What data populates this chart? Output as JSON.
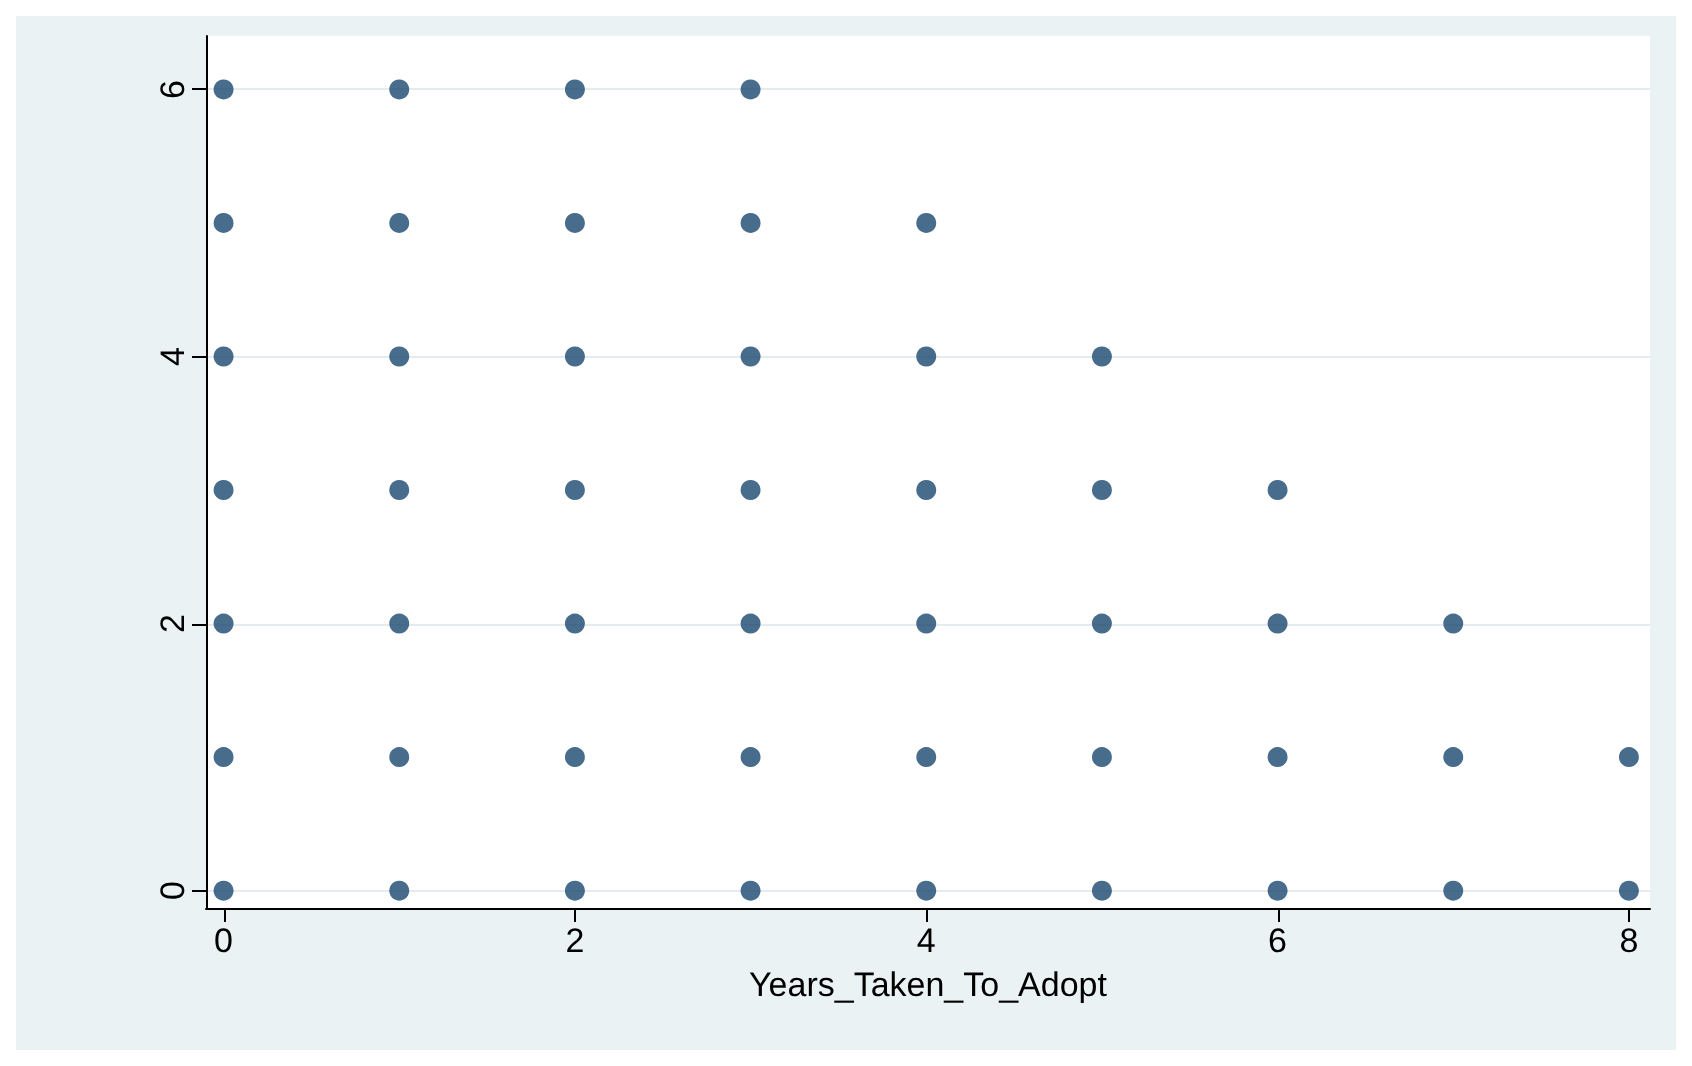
{
  "chart_data": {
    "type": "scatter",
    "xlabel": "Years_Taken_To_Adopt",
    "x": [
      0,
      0,
      0,
      0,
      0,
      0,
      0,
      1,
      1,
      1,
      1,
      1,
      1,
      1,
      2,
      2,
      2,
      2,
      2,
      2,
      2,
      3,
      3,
      3,
      3,
      3,
      3,
      3,
      4,
      4,
      4,
      4,
      4,
      4,
      5,
      5,
      5,
      5,
      5,
      6,
      6,
      6,
      6,
      7,
      7,
      7,
      8,
      8
    ],
    "series": [
      {
        "color": "#1a476f",
        "values": [
          0,
          1,
          2,
          3,
          4,
          5,
          6,
          0,
          1,
          2,
          3,
          4,
          5,
          6,
          0,
          1,
          2,
          3,
          4,
          5,
          6,
          0,
          1,
          2,
          3,
          4,
          5,
          6,
          0,
          1,
          2,
          3,
          4,
          5,
          0,
          1,
          2,
          3,
          4,
          0,
          1,
          2,
          3,
          0,
          1,
          2,
          0,
          1
        ]
      }
    ],
    "xlim": [
      -0.1,
      8.12
    ],
    "xticks": [
      0,
      2,
      4,
      6,
      8
    ],
    "ylim": [
      -0.13,
      6.4
    ],
    "yticks": [
      0,
      2,
      4,
      6
    ],
    "grid": "y",
    "marker": "circle"
  }
}
